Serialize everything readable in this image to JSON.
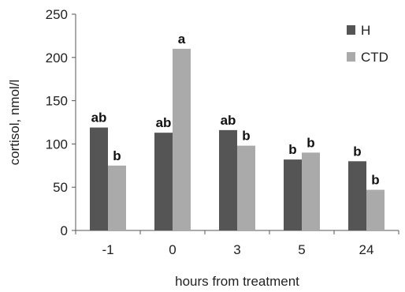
{
  "chart_data": {
    "type": "bar",
    "title": "",
    "xlabel": "hours from treatment",
    "ylabel": "cortisol, nmol/l",
    "ylim": [
      0,
      250
    ],
    "yticks": [
      0,
      50,
      100,
      150,
      200,
      250
    ],
    "categories": [
      "-1",
      "0",
      "3",
      "5",
      "24"
    ],
    "series": [
      {
        "name": "H",
        "color": "#555555",
        "values": [
          119,
          113,
          116,
          82,
          80
        ],
        "labels": [
          "ab",
          "ab",
          "ab",
          "b",
          "b"
        ]
      },
      {
        "name": "CTD",
        "color": "#aaaaaa",
        "values": [
          75,
          210,
          98,
          90,
          47
        ],
        "labels": [
          "b",
          "a",
          "b",
          "b",
          "b"
        ]
      }
    ],
    "legend": "top-right",
    "grid": false
  }
}
